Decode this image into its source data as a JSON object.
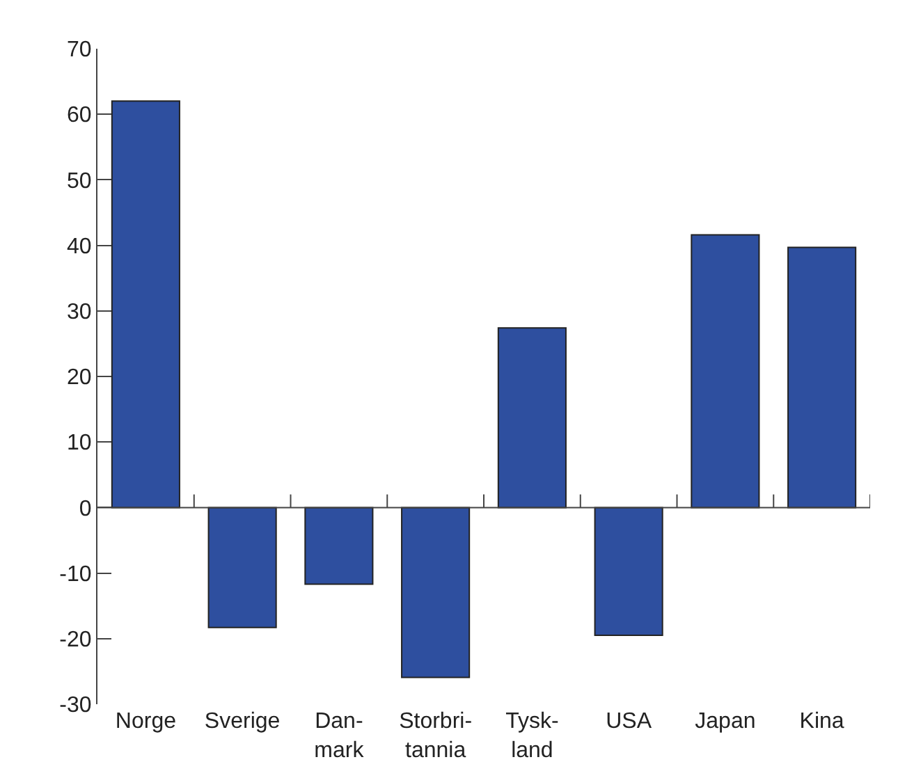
{
  "chart_data": {
    "type": "bar",
    "categories": [
      "Norge",
      "Sverige",
      "Dan-\nmark",
      "Storbri-\ntannia",
      "Tysk-\nland",
      "USA",
      "Japan",
      "Kina"
    ],
    "values": [
      62.0,
      -18.3,
      -11.7,
      -25.9,
      27.4,
      -19.5,
      41.6,
      39.7
    ],
    "color": "#2e4f9f",
    "ylim": [
      -30,
      70
    ],
    "yticks": [
      -30,
      -20,
      -10,
      0,
      10,
      20,
      30,
      40,
      50,
      60,
      70
    ]
  }
}
